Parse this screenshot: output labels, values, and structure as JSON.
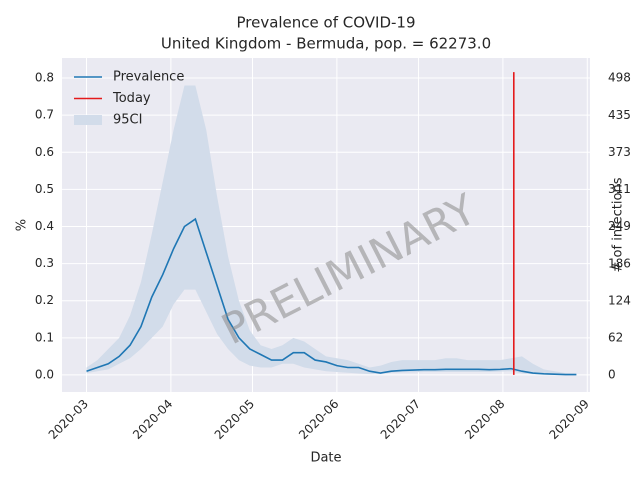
{
  "chart_data": {
    "type": "line",
    "title": "Prevalence of COVID-19",
    "subtitle": "United Kingdom - Bermuda, pop. = 62273.0",
    "x_label": "Date",
    "y_label": "%",
    "y2_label": "# of infections",
    "annotation": "PRELIMINARY",
    "x": [
      "2020-03-01",
      "2020-03-05",
      "2020-03-09",
      "2020-03-13",
      "2020-03-17",
      "2020-03-21",
      "2020-03-25",
      "2020-03-29",
      "2020-04-02",
      "2020-04-06",
      "2020-04-10",
      "2020-04-14",
      "2020-04-18",
      "2020-04-22",
      "2020-04-26",
      "2020-04-30",
      "2020-05-04",
      "2020-05-08",
      "2020-05-12",
      "2020-05-16",
      "2020-05-20",
      "2020-05-24",
      "2020-05-28",
      "2020-06-01",
      "2020-06-05",
      "2020-06-09",
      "2020-06-13",
      "2020-06-17",
      "2020-06-21",
      "2020-06-25",
      "2020-06-29",
      "2020-07-03",
      "2020-07-07",
      "2020-07-11",
      "2020-07-15",
      "2020-07-19",
      "2020-07-23",
      "2020-07-27",
      "2020-07-31",
      "2020-08-04",
      "2020-08-08",
      "2020-08-12",
      "2020-08-16",
      "2020-08-20",
      "2020-08-24",
      "2020-08-28"
    ],
    "series": [
      {
        "name": "Prevalence",
        "type": "line",
        "color": "#1f77b4",
        "values": [
          0.01,
          0.02,
          0.03,
          0.05,
          0.08,
          0.13,
          0.21,
          0.27,
          0.34,
          0.4,
          0.42,
          0.33,
          0.24,
          0.15,
          0.1,
          0.07,
          0.055,
          0.04,
          0.04,
          0.06,
          0.06,
          0.04,
          0.035,
          0.025,
          0.02,
          0.02,
          0.01,
          0.005,
          0.01,
          0.012,
          0.013,
          0.014,
          0.014,
          0.015,
          0.015,
          0.015,
          0.015,
          0.014,
          0.015,
          0.017,
          0.01,
          0.005,
          0.003,
          0.002,
          0.001,
          0.001
        ]
      },
      {
        "name": "Today",
        "type": "line",
        "color": "#e41a1c",
        "x": [
          "2020-08-05",
          "2020-08-05"
        ],
        "values": [
          0,
          0.816
        ]
      },
      {
        "name": "95CI",
        "type": "band",
        "color": "#d2dcea",
        "lower": [
          0.005,
          0.01,
          0.015,
          0.03,
          0.045,
          0.07,
          0.1,
          0.13,
          0.19,
          0.23,
          0.23,
          0.17,
          0.11,
          0.07,
          0.04,
          0.025,
          0.02,
          0.02,
          0.03,
          0.03,
          0.02,
          0.015,
          0.01,
          0.008,
          0.006,
          0.004,
          0.002,
          0.003,
          0.006,
          0.007,
          0.007,
          0.008,
          0.008,
          0.008,
          0.008,
          0.008,
          0.008,
          0.008,
          0.009,
          0.01,
          0.004,
          0.002,
          0.001,
          0.0005,
          0.0004,
          0.0003
        ],
        "upper": [
          0.02,
          0.04,
          0.07,
          0.1,
          0.16,
          0.25,
          0.38,
          0.52,
          0.66,
          0.78,
          0.78,
          0.66,
          0.48,
          0.32,
          0.2,
          0.12,
          0.08,
          0.07,
          0.08,
          0.1,
          0.09,
          0.07,
          0.05,
          0.045,
          0.04,
          0.03,
          0.02,
          0.025,
          0.035,
          0.04,
          0.04,
          0.04,
          0.04,
          0.045,
          0.045,
          0.04,
          0.04,
          0.04,
          0.04,
          0.045,
          0.05,
          0.03,
          0.015,
          0.01,
          0.005,
          0.004
        ]
      }
    ],
    "xlim": [
      "2020-02-21",
      "2020-09-02"
    ],
    "xticks": [
      {
        "value": "2020-03-01",
        "label": "2020-03"
      },
      {
        "value": "2020-04-01",
        "label": "2020-04"
      },
      {
        "value": "2020-05-01",
        "label": "2020-05"
      },
      {
        "value": "2020-06-01",
        "label": "2020-06"
      },
      {
        "value": "2020-07-01",
        "label": "2020-07"
      },
      {
        "value": "2020-08-01",
        "label": "2020-08"
      },
      {
        "value": "2020-09-01",
        "label": "2020-09"
      }
    ],
    "ylim": [
      -0.046,
      0.854
    ],
    "yticks": [
      {
        "value": 0,
        "label": "0.0"
      },
      0.1,
      0.2,
      0.3,
      0.4,
      0.5,
      0.6,
      0.7,
      0.8
    ],
    "y2lim": [
      -28.6,
      531.6
    ],
    "y2ticks": [
      0,
      62,
      124,
      186,
      249,
      311,
      373,
      435,
      498
    ],
    "grid": true,
    "legend": "upper left"
  }
}
